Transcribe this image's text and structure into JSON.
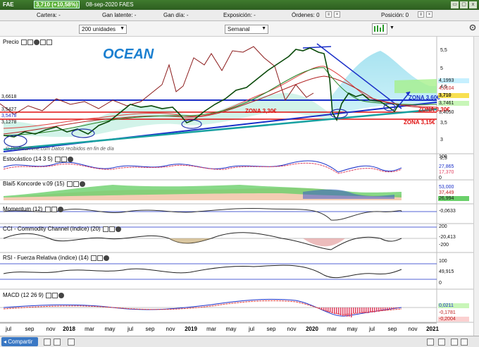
{
  "titlebar": {
    "symbol": "FAE",
    "change": "3,710 (+10,58%)",
    "date_name": "08-sep-2020 FAES",
    "close": "x"
  },
  "orderbar": {
    "cartera": "Cartera: -",
    "gan_latente": "Gan latente: -",
    "gan_dia": "Gan día: -",
    "exposicion": "Exposición: -",
    "ordenes": "Órdenes: 0",
    "posicion": "Posición: 0"
  },
  "controls": {
    "units": "200 unidades",
    "period": "Semanal"
  },
  "panels": {
    "price": "Precio",
    "estocastico": "Estocástico (14 3 5)",
    "koncorde": "Blai5 Koncorde v.09 (15)",
    "momentum": "Momentum (12)",
    "cci": "CCI - Commodity Channel (índice) (20)",
    "rsi": "RSI - Fuerza Relativa (índice) (14)",
    "macd": "MACD (12 26 9)"
  },
  "annotations": {
    "ocean": "OCEAN",
    "zona360": "ZONA 3,60€",
    "zona330a": "ZONA 3,30€",
    "zona330b": "ZONA 3,30€",
    "zona315": "ZONA 3,15€",
    "credit": "© ProRealTime.com Datos recibidos en fin de día"
  },
  "price_axis": [
    "5,5",
    "5",
    "4,5",
    "4",
    "3,5",
    "3",
    "2,5"
  ],
  "price_tags": {
    "p1": "4,1993",
    "p2": "4,0104",
    "p3": "3,7461",
    "p4": "3,710",
    "p5": "3,4050",
    "l1": "3,6618",
    "l2": "3,5427",
    "l3": "3,5478",
    "l4": "3,1278"
  },
  "indicator_values": {
    "sto_top": "100",
    "sto_a": "27,865",
    "sto_b": "17,370",
    "sto_bot": "0",
    "kon_a": "53,000",
    "kon_b": "37,449",
    "kon_c": "26,994",
    "mom": "-0,0633",
    "cci_top": "200",
    "cci_a": "-20,413",
    "cci_bot": "-200",
    "rsi_top": "100",
    "rsi_a": "49,915",
    "rsi_bot": "0",
    "macd_a": "0,0211",
    "macd_b": "-0,1781",
    "macd_c": "-0,2004"
  },
  "time_axis": [
    "jul",
    "sep",
    "nov",
    "2018",
    "mar",
    "may",
    "jul",
    "sep",
    "nov",
    "2019",
    "mar",
    "may",
    "jul",
    "sep",
    "nov",
    "2020",
    "mar",
    "may",
    "jul",
    "sep",
    "nov",
    "2021"
  ],
  "bottombar": {
    "share": "Compartir"
  },
  "colors": {
    "title_green": "#3f7a2e",
    "zone_blue": "#1a2fc8",
    "zone_red": "#e01010",
    "ocean_text": "#1a7fd0",
    "cloud": "#9fe0ef",
    "cloud_green": "#a6f08c"
  }
}
